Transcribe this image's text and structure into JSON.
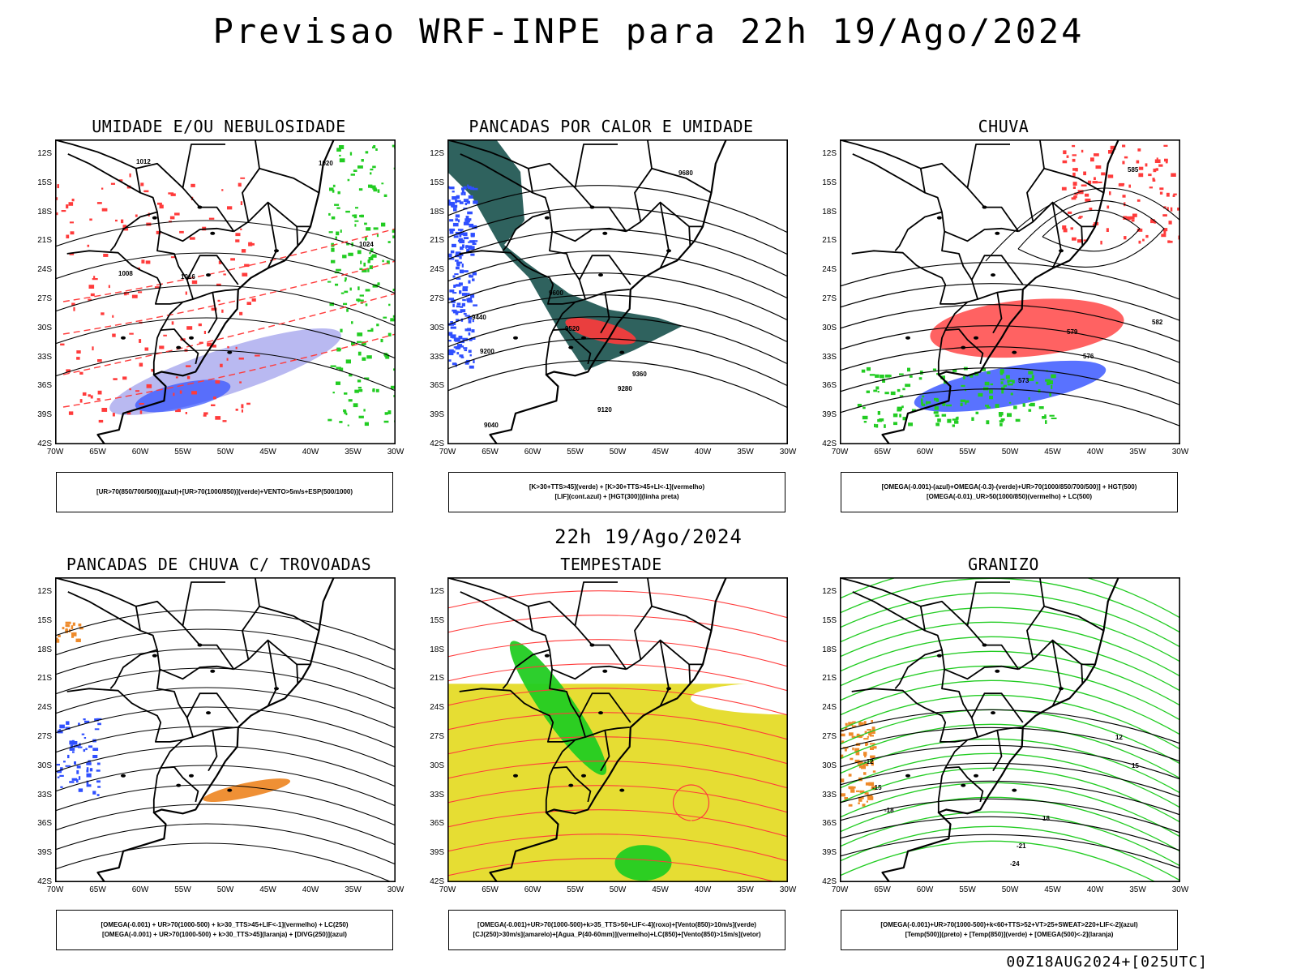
{
  "title": "Previsao WRF-INPE  para 22h 19/Ago/2024",
  "subtitle": "22h 19/Ago/2024",
  "footer": "00Z18AUG2024+[025UTC]",
  "lat_ticks": [
    "12S",
    "15S",
    "18S",
    "21S",
    "24S",
    "27S",
    "30S",
    "33S",
    "36S",
    "39S",
    "42S"
  ],
  "lon_ticks": [
    "70W",
    "65W",
    "60W",
    "55W",
    "50W",
    "45W",
    "40W",
    "35W",
    "30W"
  ],
  "colors": {
    "red": "#ff3b3b",
    "green": "#22cc22",
    "blue": "#2f4fff",
    "lavender": "#a8a8ee",
    "dark_teal": "#245a55",
    "orange": "#ee8a2a",
    "yellow": "#e6dd33"
  },
  "panels": [
    {
      "title": "UMIDADE E/OU NEBULOSIDADE",
      "legend": [
        "[UR>70(850/700/500)](azul)+[UR>70(1000/850)](verde)+VENTO>5m/s+ESP(500/1000)"
      ],
      "contour_labels": [
        "1012",
        "1020",
        "1024",
        "1008",
        "1016"
      ]
    },
    {
      "title": "PANCADAS POR CALOR E UMIDADE",
      "legend": [
        "[K>30+TTS>45](verde) + [K>30+TTS>45+LI<-1](vermelho)",
        "[LIF](cont.azul) + [HGT(300)](linha preta)"
      ],
      "contour_labels": [
        "9680",
        "9600",
        "9520",
        "9440",
        "9360",
        "9280",
        "9200",
        "9120",
        "9040"
      ]
    },
    {
      "title": "CHUVA",
      "legend": [
        "[OMEGA(-0.001)-(azul)+OMEGA(-0.3)-(verde)+UR>70(1000/850/700/500)] + HGT(500)",
        "[OMEGA(-0.01)_UR>50(1000/850)(vermelho) + LC(500)"
      ],
      "contour_labels": [
        "585",
        "582",
        "579",
        "576",
        "573"
      ]
    },
    {
      "title": "PANCADAS DE CHUVA C/ TROVOADAS",
      "legend": [
        "[OMEGA(-0.001) + UR>70(1000-500) + k>30_TTS>45+LIF<-1](vermelho) + LC(250)",
        "[OMEGA(-0.001) + UR>70(1000-500) + k>30_TTS>45](laranja) + [DIVG(250)](azul)"
      ]
    },
    {
      "title": "TEMPESTADE",
      "legend": [
        "[OMEGA(-0.001)+UR>70(1000-500)+k>35_TTS>50+LIF<-4](roxo)+[Vento(850)>10m/s](verde)",
        "[CJ(250)>30m/s](amarelo)+[Agua_P(40-60mm)](vermelho)+LC(850)+[Vento(850)>15m/s](vetor)"
      ]
    },
    {
      "title": "GRANIZO",
      "legend": [
        "[OMEGA(-0.001)+UR>70(1000-500)+k<60+TTS>52+VT>25+SWEAT>220+LIF<-2](azul)",
        "[Temp(500)](preto) + [Temp(850)](verde) + [OMEGA(500)<-2](laranja)"
      ],
      "contour_labels": [
        "-12",
        "-15",
        "-18",
        "-21",
        "-24",
        "12",
        "15",
        "18"
      ]
    }
  ]
}
